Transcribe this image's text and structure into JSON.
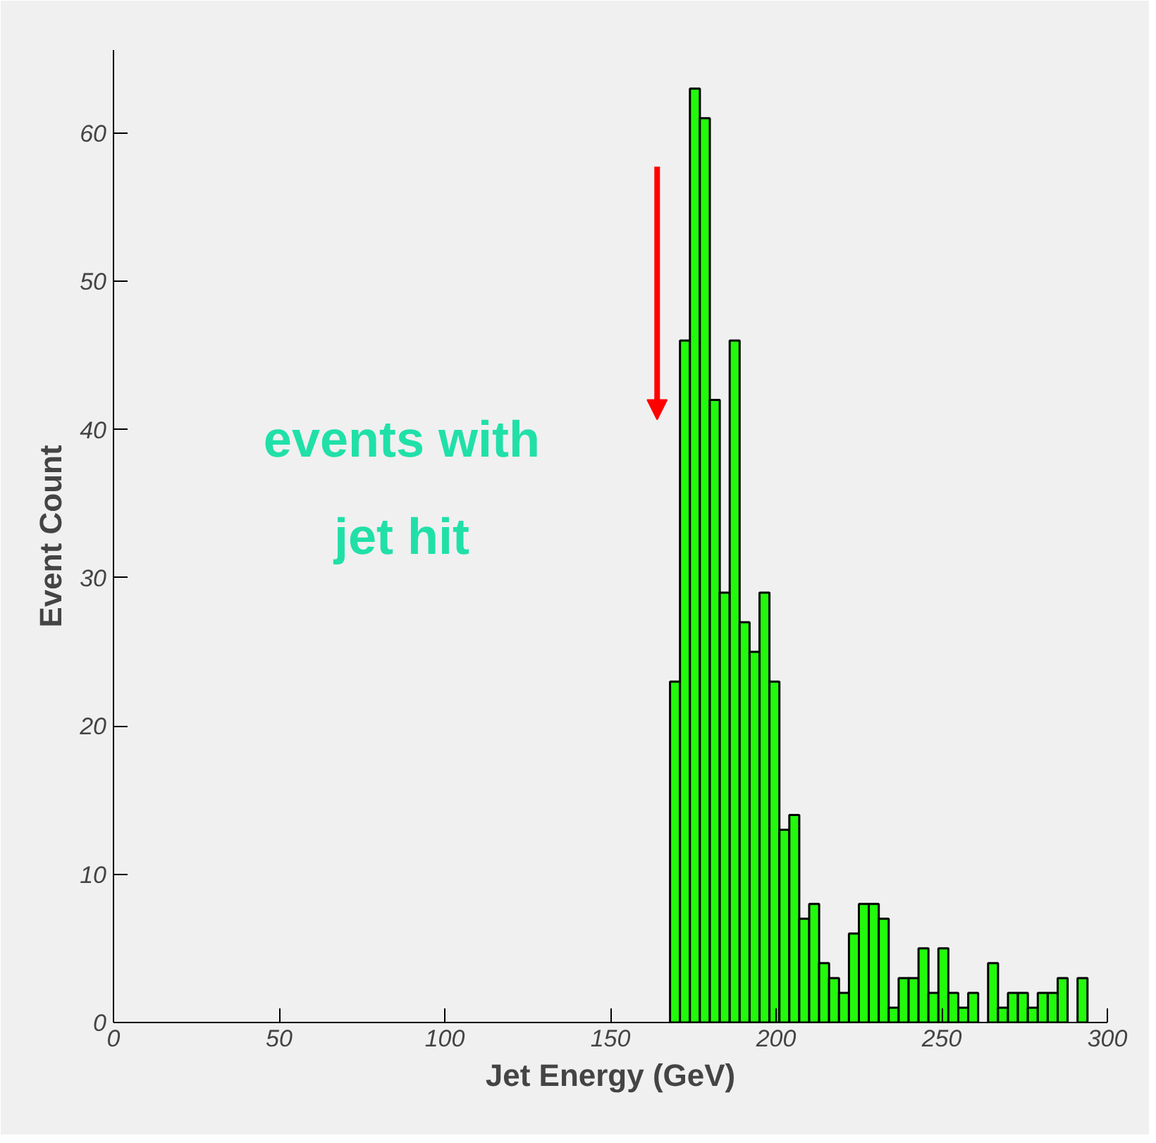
{
  "chart_data": {
    "type": "histogram",
    "xlabel": "Jet Energy (GeV)",
    "ylabel": "Event Count",
    "bins": [
      168,
      171,
      174,
      177,
      180,
      183,
      186,
      189,
      192,
      195,
      198,
      201,
      204,
      207,
      210,
      213,
      216,
      219,
      222,
      225,
      228,
      231,
      234,
      237,
      240,
      243,
      246,
      249,
      252,
      255,
      258,
      261,
      264,
      267,
      270,
      273,
      276,
      279,
      282,
      285,
      288,
      291,
      294
    ],
    "values": [
      23,
      46,
      63,
      61,
      42,
      29,
      46,
      27,
      25,
      29,
      23,
      13,
      14,
      7,
      8,
      4,
      3,
      2,
      6,
      8,
      8,
      7,
      1,
      3,
      3,
      5,
      2,
      5,
      2,
      1,
      2,
      0,
      4,
      1,
      2,
      2,
      1,
      2,
      2,
      3,
      0,
      3
    ],
    "color": "#22fa0c",
    "xlim": [
      0,
      300
    ],
    "xticks": [
      0,
      50,
      100,
      150,
      200,
      250,
      300
    ],
    "ylim": [
      0,
      65.6
    ],
    "yticks": [
      0,
      10,
      20,
      30,
      40,
      50,
      60
    ],
    "annotations": [
      "events with jet hit"
    ],
    "grid": false
  }
}
